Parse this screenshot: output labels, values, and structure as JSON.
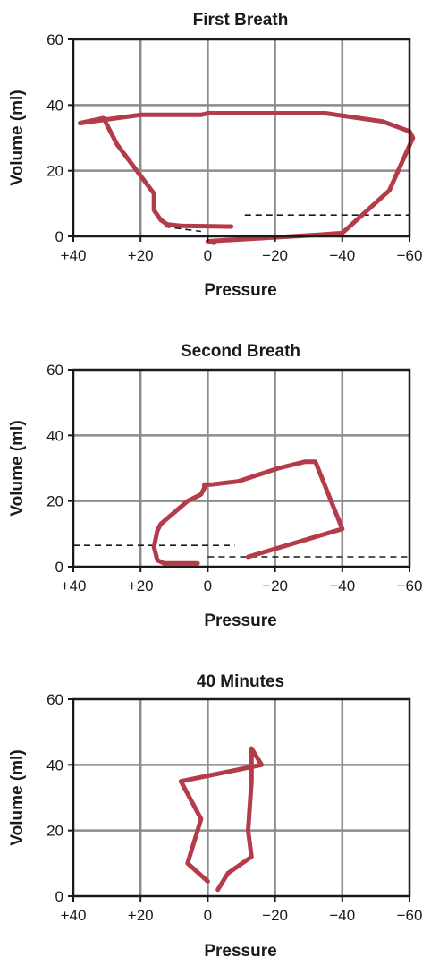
{
  "colors": {
    "loop": "#b43c4a",
    "grid": "#8c8c8c",
    "axis": "#1a1a1a"
  },
  "chart_data": [
    {
      "type": "line",
      "title": "First Breath",
      "xlabel": "Pressure",
      "ylabel": "Volume (ml)",
      "xlim": [
        40,
        -60
      ],
      "ylim": [
        0,
        60
      ],
      "xticks": [
        40,
        20,
        0,
        -20,
        -40,
        -60
      ],
      "xtick_labels": [
        "+40",
        "+20",
        "0",
        "−20",
        "−40",
        "−60"
      ],
      "yticks": [
        0,
        20,
        40,
        60
      ],
      "ytick_labels": [
        "0",
        "20",
        "40",
        "60"
      ],
      "grid": true,
      "series": [
        {
          "x": [
            -7,
            8,
            12,
            14,
            16,
            16,
            27,
            31,
            38,
            20,
            10,
            2,
            0,
            -10,
            -35,
            -52,
            -60,
            -61,
            -54,
            -40,
            -33,
            0,
            -2
          ],
          "y": [
            3,
            3.2,
            3.6,
            5,
            8,
            13,
            28,
            36,
            34.5,
            37,
            37,
            37,
            37.5,
            37.5,
            37.5,
            35,
            32,
            30,
            14,
            1,
            0.5,
            -1.5,
            -2
          ]
        }
      ],
      "reference_lines": [
        {
          "x": [
            -11,
            -60
          ],
          "y": [
            6.5,
            6.5
          ]
        },
        {
          "x": [
            13,
            2
          ],
          "y": [
            3,
            1.5
          ]
        }
      ]
    },
    {
      "type": "line",
      "title": "Second Breath",
      "xlabel": "Pressure",
      "ylabel": "Volume (ml)",
      "xlim": [
        40,
        -60
      ],
      "ylim": [
        0,
        60
      ],
      "xticks": [
        40,
        20,
        0,
        -20,
        -40,
        -60
      ],
      "xtick_labels": [
        "+40",
        "+20",
        "0",
        "−20",
        "−40",
        "−60"
      ],
      "yticks": [
        0,
        20,
        40,
        60
      ],
      "ytick_labels": [
        "0",
        "20",
        "40",
        "60"
      ],
      "grid": true,
      "series": [
        {
          "x": [
            3,
            13,
            15,
            16,
            15,
            14,
            6,
            2,
            1,
            1,
            -1,
            -9,
            -21,
            -29,
            -32,
            -40,
            -12
          ],
          "y": [
            1,
            1,
            2,
            6,
            11,
            13,
            20,
            22,
            24,
            25,
            25,
            26,
            30,
            32,
            32,
            11.5,
            3
          ]
        }
      ],
      "reference_lines": [
        {
          "x": [
            40,
            -8
          ],
          "y": [
            6.5,
            6.5
          ]
        },
        {
          "x": [
            0,
            -60
          ],
          "y": [
            3,
            3
          ]
        }
      ]
    },
    {
      "type": "line",
      "title": "40 Minutes",
      "xlabel": "Pressure",
      "ylabel": "Volume (ml)",
      "xlim": [
        40,
        -60
      ],
      "ylim": [
        0,
        60
      ],
      "xticks": [
        40,
        20,
        0,
        -20,
        -40,
        -60
      ],
      "xtick_labels": [
        "+40",
        "+20",
        "0",
        "−20",
        "−40",
        "−60"
      ],
      "yticks": [
        0,
        20,
        40,
        60
      ],
      "ytick_labels": [
        "0",
        "20",
        "40",
        "60"
      ],
      "grid": true,
      "series": [
        {
          "x": [
            0,
            6,
            2,
            8,
            -16,
            -13,
            -13,
            -12,
            -13,
            -6,
            -3
          ],
          "y": [
            4.5,
            10,
            23.5,
            35,
            40,
            45,
            35,
            20,
            12,
            7,
            2
          ]
        }
      ],
      "reference_lines": []
    }
  ]
}
